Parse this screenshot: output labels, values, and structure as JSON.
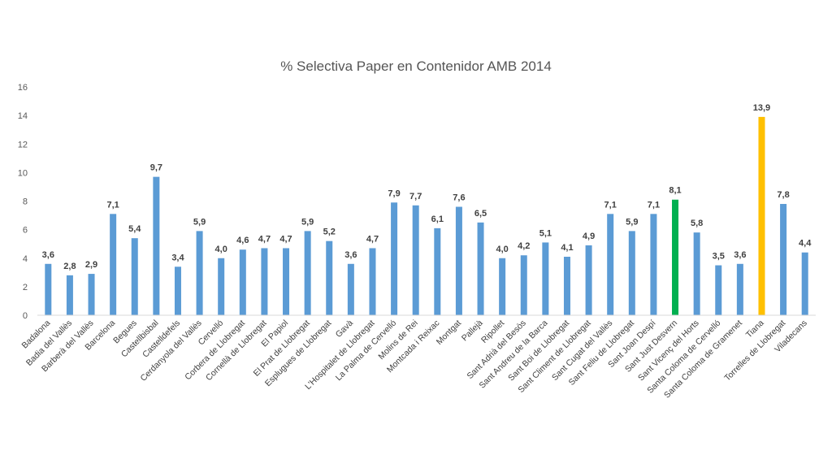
{
  "chart_data": {
    "type": "bar",
    "title": "% Selectiva Paper en Contenidor AMB 2014",
    "xlabel": "",
    "ylabel": "",
    "ylim": [
      0,
      16
    ],
    "yticks": [
      "0",
      "2",
      "4",
      "6",
      "8",
      "10",
      "12",
      "14",
      "16"
    ],
    "grid": false,
    "legend": "none",
    "colors": {
      "default": "#5b9bd5",
      "Sant Just Desvern": "#00b050",
      "Tiana": "#ffc000"
    },
    "categories": [
      "Badalona",
      "Badia del Vallès",
      "Barberà del Vallès",
      "Barcelona",
      "Begues",
      "Castellbisbal",
      "Castelldefels",
      "Cerdanyola del Vallès",
      "Cervelló",
      "Corbera de Llobregat",
      "Cornellà de Llobregat",
      "El Papiol",
      "El Prat de Llobregat",
      "Esplugues de Llobregat",
      "Gavà",
      "L'Hospitalet de Llobregat",
      "La Palma de Cervelló",
      "Molins de Rei",
      "Montcada i Reixac",
      "Montgat",
      "Pallejà",
      "Ripollet",
      "Sant Adrià del Besòs",
      "Sant Andreu de la Barca",
      "Sant Boi de Llobregat",
      "Sant Climent de Llobregat",
      "Sant Cugat del Vallès",
      "Sant Feliu de Llobregat",
      "Sant Joan Despí",
      "Sant Just Desvern",
      "Sant Vicenç del Horts",
      "Santa Coloma de Cervelló",
      "Santa Coloma de Gramenet",
      "Tiana",
      "Torrelles de Llobregat",
      "Viladecans"
    ],
    "values": [
      3.6,
      2.8,
      2.9,
      7.1,
      5.4,
      9.7,
      3.4,
      5.9,
      4.0,
      4.6,
      4.7,
      4.7,
      5.9,
      5.2,
      3.6,
      4.7,
      7.9,
      7.7,
      6.1,
      7.6,
      6.5,
      4.0,
      4.2,
      5.1,
      4.1,
      4.9,
      7.1,
      5.9,
      7.1,
      8.1,
      5.8,
      3.5,
      3.6,
      13.9,
      7.8,
      4.4
    ],
    "data_labels": [
      "3,6",
      "2,8",
      "2,9",
      "7,1",
      "5,4",
      "9,7",
      "3,4",
      "5,9",
      "4,0",
      "4,6",
      "4,7",
      "4,7",
      "5,9",
      "5,2",
      "3,6",
      "4,7",
      "7,9",
      "7,7",
      "6,1",
      "7,6",
      "6,5",
      "4,0",
      "4,2",
      "5,1",
      "4,1",
      "4,9",
      "7,1",
      "5,9",
      "7,1",
      "8,1",
      "5,8",
      "3,5",
      "3,6",
      "13,9",
      "7,8",
      "4,4"
    ]
  }
}
